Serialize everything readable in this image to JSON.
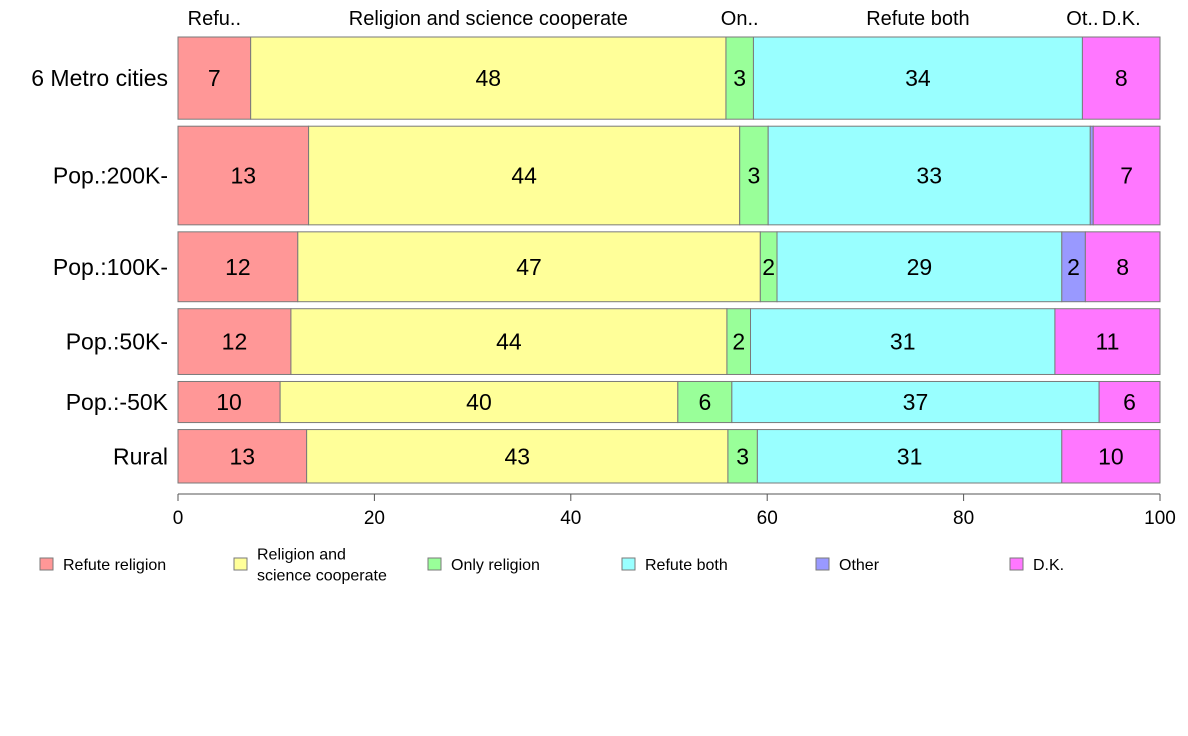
{
  "chart_data": {
    "type": "bar",
    "orientation": "horizontal",
    "stacked": true,
    "categories": [
      "6 Metro cities",
      "Pop.:200K-",
      "Pop.:100K-",
      "Pop.:50K-",
      "Pop.:-50K",
      "Rural"
    ],
    "series": [
      {
        "name": "Refute religion",
        "legend_label": [
          "Refute religion"
        ],
        "color": "#ff9797",
        "values": [
          7.4,
          13.3,
          12.2,
          11.5,
          10.4,
          13.1
        ]
      },
      {
        "name": "Religion and science cooperate",
        "legend_label": [
          "Religion and",
          "science cooperate"
        ],
        "color": "#ffff99",
        "values": [
          48.4,
          43.9,
          47.1,
          44.4,
          40.5,
          42.9
        ]
      },
      {
        "name": "Only religion",
        "legend_label": [
          "Only religion"
        ],
        "color": "#99ff99",
        "values": [
          2.8,
          2.9,
          1.7,
          2.4,
          5.5,
          3.0
        ]
      },
      {
        "name": "Refute both",
        "legend_label": [
          "Refute both"
        ],
        "color": "#99ffff",
        "values": [
          33.5,
          32.8,
          29.0,
          31.0,
          37.4,
          31.0
        ]
      },
      {
        "name": "Other",
        "legend_label": [
          "Other"
        ],
        "color": "#9999ff",
        "values": [
          0.0,
          0.3,
          2.4,
          0.0,
          0.0,
          0.0
        ]
      },
      {
        "name": "D.K.",
        "legend_label": [
          "D.K."
        ],
        "color": "#ff77ff",
        "values": [
          7.9,
          6.8,
          7.6,
          10.7,
          6.2,
          10.0
        ]
      }
    ],
    "data_labels": [
      [
        "7",
        "48",
        "3",
        "34",
        "",
        "8"
      ],
      [
        "13",
        "44",
        "3",
        "33",
        "",
        "7"
      ],
      [
        "12",
        "47",
        "2",
        "29",
        "2",
        "8"
      ],
      [
        "12",
        "44",
        "2",
        "31",
        "",
        "11"
      ],
      [
        "10",
        "40",
        "6",
        "37",
        "",
        "6"
      ],
      [
        "13",
        "43",
        "3",
        "31",
        "",
        "10"
      ]
    ],
    "top_labels": [
      "Refu..",
      "Religion and science cooperate",
      "On..",
      "Refute both",
      "Ot..",
      "D.K."
    ],
    "bar_weights": [
      1.0,
      1.2,
      0.85,
      0.8,
      0.5,
      0.65
    ],
    "xlim": [
      0,
      100
    ],
    "xticks": [
      "0",
      "20",
      "40",
      "60",
      "80",
      "100"
    ],
    "grid": false,
    "legend_position": "bottom"
  }
}
